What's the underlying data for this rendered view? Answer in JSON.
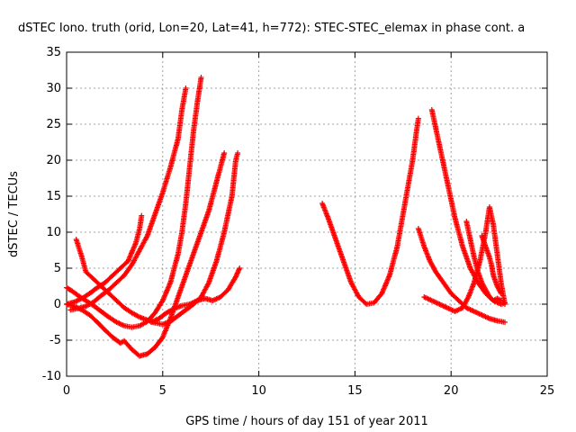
{
  "chart_data": {
    "type": "scatter",
    "title": "dSTEC Iono. truth (orid, Lon=20, Lat=41, h=772): STEC-STEC_elemax in phase cont. a",
    "xlabel": "GPS time / hours of day 151 of year 2011",
    "ylabel": "dSTEC  / TECUs",
    "xlim": [
      0,
      25
    ],
    "ylim": [
      -10,
      35
    ],
    "x_ticks": [
      "0",
      "5",
      "10",
      "15",
      "20",
      "25"
    ],
    "y_ticks": [
      "-10",
      "-5",
      "0",
      "5",
      "10",
      "15",
      "20",
      "25",
      "30",
      "35"
    ],
    "grid": true,
    "marker": "plus",
    "color": "#ff0000",
    "series": [
      {
        "points": [
          [
            0.0,
            2.3
          ],
          [
            0.3,
            1.8
          ],
          [
            0.6,
            1.2
          ],
          [
            1.0,
            0.5
          ],
          [
            1.4,
            -0.2
          ],
          [
            1.8,
            -1.0
          ],
          [
            2.2,
            -1.8
          ],
          [
            2.6,
            -2.5
          ],
          [
            3.0,
            -3.0
          ],
          [
            3.4,
            -3.2
          ],
          [
            3.8,
            -3.0
          ],
          [
            4.2,
            -2.4
          ],
          [
            4.6,
            -1.2
          ],
          [
            5.0,
            0.5
          ],
          [
            5.4,
            3.0
          ],
          [
            5.8,
            7.0
          ],
          [
            6.0,
            10.0
          ],
          [
            6.2,
            14.0
          ],
          [
            6.4,
            19.0
          ],
          [
            6.6,
            24.0
          ],
          [
            6.8,
            28.0
          ],
          [
            7.0,
            31.5
          ]
        ]
      },
      {
        "points": [
          [
            0.0,
            0.0
          ],
          [
            0.4,
            -0.3
          ],
          [
            0.8,
            -0.8
          ],
          [
            1.2,
            -1.5
          ],
          [
            1.6,
            -2.5
          ],
          [
            2.0,
            -3.6
          ],
          [
            2.4,
            -4.6
          ],
          [
            2.8,
            -5.4
          ],
          [
            3.0,
            -5.1
          ],
          [
            3.4,
            -6.3
          ],
          [
            3.8,
            -7.2
          ],
          [
            4.2,
            -6.9
          ],
          [
            4.6,
            -6.0
          ],
          [
            5.0,
            -4.6
          ],
          [
            5.4,
            -2.0
          ],
          [
            5.8,
            1.0
          ],
          [
            6.2,
            4.0
          ],
          [
            6.6,
            7.0
          ],
          [
            7.0,
            10.0
          ],
          [
            7.4,
            13.0
          ],
          [
            7.8,
            17.0
          ],
          [
            8.2,
            21.0
          ]
        ]
      },
      {
        "points": [
          [
            0.5,
            9.0
          ],
          [
            0.8,
            6.5
          ],
          [
            1.0,
            4.5
          ],
          [
            1.4,
            3.5
          ],
          [
            1.8,
            2.5
          ],
          [
            2.2,
            1.5
          ],
          [
            2.6,
            0.5
          ],
          [
            3.0,
            -0.5
          ],
          [
            3.4,
            -1.2
          ],
          [
            3.8,
            -1.8
          ],
          [
            4.2,
            -2.2
          ],
          [
            4.6,
            -2.6
          ],
          [
            5.0,
            -2.8
          ],
          [
            5.4,
            -2.4
          ],
          [
            5.8,
            -1.6
          ],
          [
            6.2,
            -0.8
          ],
          [
            6.6,
            0.0
          ],
          [
            7.0,
            1.0
          ],
          [
            7.4,
            3.0
          ],
          [
            7.8,
            6.0
          ],
          [
            8.2,
            10.0
          ],
          [
            8.6,
            15.0
          ],
          [
            8.8,
            20.0
          ],
          [
            8.9,
            21.0
          ]
        ]
      },
      {
        "points": [
          [
            0.0,
            0.0
          ],
          [
            0.4,
            0.3
          ],
          [
            0.8,
            0.8
          ],
          [
            1.2,
            1.5
          ],
          [
            1.6,
            2.3
          ],
          [
            2.0,
            3.0
          ],
          [
            2.4,
            4.0
          ],
          [
            2.8,
            5.0
          ],
          [
            3.2,
            6.0
          ],
          [
            3.6,
            8.5
          ],
          [
            3.8,
            10.5
          ],
          [
            3.9,
            12.3
          ]
        ]
      },
      {
        "points": [
          [
            0.2,
            -0.8
          ],
          [
            0.6,
            -0.6
          ],
          [
            1.0,
            -0.3
          ],
          [
            1.4,
            0.3
          ],
          [
            1.8,
            1.2
          ],
          [
            2.2,
            2.0
          ],
          [
            2.6,
            3.0
          ],
          [
            3.0,
            4.0
          ],
          [
            3.4,
            5.5
          ],
          [
            3.8,
            7.5
          ],
          [
            4.2,
            9.5
          ],
          [
            4.6,
            12.5
          ],
          [
            5.0,
            15.5
          ],
          [
            5.4,
            19.0
          ],
          [
            5.8,
            23.0
          ],
          [
            6.0,
            27.0
          ],
          [
            6.2,
            30.0
          ]
        ]
      },
      {
        "points": [
          [
            4.4,
            -2.5
          ],
          [
            4.8,
            -2.0
          ],
          [
            5.2,
            -1.2
          ],
          [
            5.6,
            -0.6
          ],
          [
            6.0,
            -0.2
          ],
          [
            6.4,
            0.0
          ],
          [
            6.8,
            0.5
          ],
          [
            7.2,
            0.8
          ],
          [
            7.6,
            0.5
          ],
          [
            8.0,
            1.0
          ],
          [
            8.4,
            2.0
          ],
          [
            8.8,
            3.8
          ],
          [
            9.0,
            5.0
          ]
        ]
      },
      {
        "points": [
          [
            13.3,
            14.0
          ],
          [
            13.6,
            12.0
          ],
          [
            14.0,
            9.0
          ],
          [
            14.4,
            6.0
          ],
          [
            14.8,
            3.0
          ],
          [
            15.2,
            1.0
          ],
          [
            15.6,
            0.0
          ],
          [
            16.0,
            0.2
          ],
          [
            16.4,
            1.5
          ],
          [
            16.8,
            4.0
          ],
          [
            17.2,
            8.0
          ],
          [
            17.6,
            14.0
          ],
          [
            18.0,
            20.0
          ],
          [
            18.2,
            24.0
          ],
          [
            18.3,
            25.8
          ]
        ]
      },
      {
        "points": [
          [
            18.3,
            10.5
          ],
          [
            18.6,
            8.0
          ],
          [
            18.9,
            6.0
          ],
          [
            19.2,
            4.5
          ],
          [
            19.6,
            3.0
          ],
          [
            20.0,
            1.5
          ],
          [
            20.4,
            0.5
          ],
          [
            20.8,
            -0.5
          ],
          [
            21.2,
            -1.0
          ],
          [
            21.6,
            -1.5
          ],
          [
            22.0,
            -2.0
          ],
          [
            22.4,
            -2.3
          ],
          [
            22.8,
            -2.5
          ]
        ]
      },
      {
        "points": [
          [
            19.0,
            27.0
          ],
          [
            19.4,
            22.0
          ],
          [
            19.8,
            17.0
          ],
          [
            20.2,
            12.0
          ],
          [
            20.6,
            8.0
          ],
          [
            21.0,
            5.0
          ],
          [
            21.4,
            3.0
          ],
          [
            21.8,
            1.5
          ],
          [
            22.2,
            0.5
          ],
          [
            22.6,
            0.0
          ],
          [
            22.8,
            0.2
          ]
        ]
      },
      {
        "points": [
          [
            18.6,
            1.0
          ],
          [
            19.0,
            0.5
          ],
          [
            19.4,
            0.0
          ],
          [
            19.8,
            -0.5
          ],
          [
            20.2,
            -1.0
          ],
          [
            20.6,
            -0.5
          ],
          [
            20.9,
            1.0
          ],
          [
            21.2,
            3.0
          ],
          [
            21.5,
            6.0
          ],
          [
            21.8,
            10.0
          ],
          [
            22.0,
            13.5
          ],
          [
            22.2,
            11.0
          ],
          [
            22.4,
            7.0
          ],
          [
            22.6,
            3.0
          ],
          [
            22.8,
            0.0
          ]
        ]
      },
      {
        "points": [
          [
            20.8,
            11.5
          ],
          [
            21.0,
            9.0
          ],
          [
            21.2,
            6.5
          ],
          [
            21.4,
            4.5
          ],
          [
            21.6,
            3.0
          ],
          [
            21.8,
            2.0
          ],
          [
            22.0,
            1.0
          ],
          [
            22.2,
            0.5
          ],
          [
            22.4,
            0.8
          ],
          [
            22.6,
            0.5
          ]
        ]
      },
      {
        "points": [
          [
            21.6,
            9.5
          ],
          [
            21.8,
            8.0
          ],
          [
            22.0,
            6.5
          ],
          [
            22.1,
            5.5
          ],
          [
            22.2,
            4.0
          ],
          [
            22.4,
            2.5
          ],
          [
            22.6,
            1.5
          ]
        ]
      }
    ]
  }
}
